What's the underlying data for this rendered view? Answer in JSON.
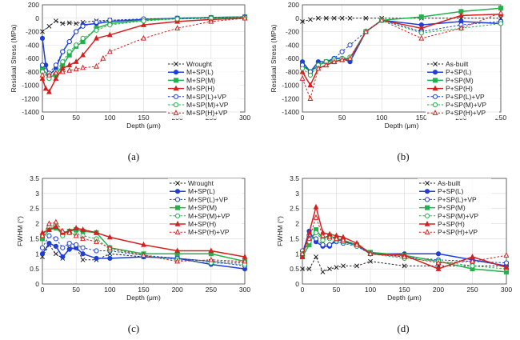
{
  "panel_letters": [
    "(a)",
    "(b)",
    "(c)",
    "(d)"
  ],
  "chart_data": [
    {
      "id": "a",
      "type": "line",
      "xlabel": "Depth (μm)",
      "ylabel": "Residual Stress (MPa)",
      "xlim": [
        0,
        300
      ],
      "ylim": [
        -1400,
        200
      ],
      "xticks": [
        0,
        50,
        100,
        150,
        200,
        250,
        300
      ],
      "yticks": [
        -1400,
        -1200,
        -1000,
        -800,
        -600,
        -400,
        -200,
        0,
        200
      ],
      "grid": true,
      "legend_position": "bottom-right",
      "series": [
        {
          "name": "Wrought",
          "color": "#222222",
          "dashed": true,
          "marker": "x",
          "x": [
            0,
            10,
            20,
            30,
            40,
            50,
            60,
            80,
            100,
            150,
            200,
            250,
            300
          ],
          "y": [
            -200,
            -120,
            -40,
            -80,
            -70,
            -80,
            -60,
            -40,
            -30,
            -20,
            -10,
            0,
            10
          ]
        },
        {
          "name": "M+SP(L)",
          "color": "#1f3fd6",
          "dashed": false,
          "marker": "circle",
          "x": [
            0,
            5,
            10,
            20,
            30,
            40,
            50,
            60,
            80,
            100,
            150,
            200,
            250,
            300
          ],
          "y": [
            -300,
            -700,
            -850,
            -750,
            -500,
            -350,
            -200,
            -100,
            -80,
            -50,
            -20,
            0,
            10,
            20
          ]
        },
        {
          "name": "M+SP(M)",
          "color": "#22b14c",
          "dashed": false,
          "marker": "square",
          "x": [
            0,
            10,
            20,
            30,
            40,
            50,
            60,
            80,
            100,
            150,
            200,
            250,
            300
          ],
          "y": [
            -750,
            -880,
            -850,
            -700,
            -550,
            -420,
            -350,
            -150,
            -80,
            -30,
            0,
            10,
            20
          ]
        },
        {
          "name": "M+SP(H)",
          "color": "#d42020",
          "dashed": false,
          "marker": "triangle",
          "x": [
            0,
            5,
            10,
            20,
            30,
            40,
            50,
            60,
            80,
            100,
            150,
            200,
            250,
            300
          ],
          "y": [
            -900,
            -1050,
            -1100,
            -900,
            -750,
            -700,
            -650,
            -550,
            -300,
            -250,
            -100,
            -50,
            -20,
            0
          ]
        },
        {
          "name": "M+SP(L)+VP",
          "color": "#1f3fd6",
          "dashed": true,
          "marker": "circle-open",
          "x": [
            0,
            10,
            20,
            30,
            40,
            50,
            60,
            80,
            100,
            150,
            200,
            250,
            300
          ],
          "y": [
            -700,
            -820,
            -700,
            -500,
            -350,
            -200,
            -120,
            -60,
            -30,
            -10,
            0,
            10,
            20
          ]
        },
        {
          "name": "M+SP(M)+VP",
          "color": "#22b14c",
          "dashed": true,
          "marker": "circle-open",
          "x": [
            0,
            10,
            20,
            30,
            40,
            50,
            60,
            80,
            100,
            150,
            200,
            250,
            300
          ],
          "y": [
            -800,
            -900,
            -800,
            -650,
            -500,
            -400,
            -300,
            -180,
            -100,
            -40,
            -10,
            0,
            10
          ]
        },
        {
          "name": "M+SP(H)+VP",
          "color": "#d42020",
          "dashed": true,
          "marker": "triangle-open",
          "x": [
            0,
            10,
            20,
            30,
            40,
            50,
            60,
            80,
            90,
            100,
            150,
            200,
            250,
            300
          ],
          "y": [
            -850,
            -850,
            -820,
            -800,
            -780,
            -760,
            -740,
            -720,
            -600,
            -500,
            -300,
            -150,
            -50,
            0
          ]
        }
      ]
    },
    {
      "id": "b",
      "type": "line",
      "xlabel": "Depth (μm)",
      "ylabel": "Residual Stress (MPa)",
      "xlim": [
        0,
        250
      ],
      "ylim": [
        -1400,
        200
      ],
      "xticks": [
        0,
        50,
        100,
        150,
        200,
        250
      ],
      "yticks": [
        -1400,
        -1200,
        -1000,
        -800,
        -600,
        -400,
        -200,
        0,
        200
      ],
      "grid": true,
      "legend_position": "bottom-right",
      "series": [
        {
          "name": "As-built",
          "color": "#222222",
          "dashed": true,
          "marker": "x",
          "x": [
            0,
            10,
            20,
            30,
            40,
            50,
            60,
            80,
            100,
            150,
            200,
            250
          ],
          "y": [
            -50,
            -20,
            0,
            0,
            0,
            0,
            0,
            0,
            0,
            0,
            0,
            0
          ]
        },
        {
          "name": "P+SP(L)",
          "color": "#1f3fd6",
          "dashed": false,
          "marker": "circle",
          "x": [
            0,
            10,
            20,
            30,
            40,
            50,
            60,
            80,
            100,
            150,
            200,
            250
          ],
          "y": [
            -650,
            -800,
            -650,
            -650,
            -600,
            -600,
            -650,
            -200,
            -30,
            -100,
            -50,
            -80
          ]
        },
        {
          "name": "P+SP(M)",
          "color": "#22b14c",
          "dashed": false,
          "marker": "square",
          "x": [
            0,
            10,
            20,
            30,
            40,
            50,
            60,
            80,
            100,
            150,
            200,
            250
          ],
          "y": [
            -700,
            -800,
            -700,
            -650,
            -650,
            -620,
            -600,
            -200,
            -30,
            20,
            100,
            150
          ]
        },
        {
          "name": "P+SP(H)",
          "color": "#d42020",
          "dashed": false,
          "marker": "triangle",
          "x": [
            0,
            10,
            20,
            30,
            40,
            50,
            60,
            80,
            100,
            150,
            200,
            250
          ],
          "y": [
            -800,
            -1000,
            -750,
            -700,
            -650,
            -620,
            -600,
            -200,
            -30,
            -150,
            40,
            60
          ]
        },
        {
          "name": "P+SP(L)+VP",
          "color": "#1f3fd6",
          "dashed": true,
          "marker": "circle-open",
          "x": [
            0,
            10,
            20,
            30,
            40,
            50,
            60,
            80,
            100,
            150,
            200,
            250
          ],
          "y": [
            -700,
            -800,
            -700,
            -650,
            -600,
            -500,
            -400,
            -200,
            -30,
            -200,
            -100,
            -50
          ]
        },
        {
          "name": "P+SP(M)+VP",
          "color": "#22b14c",
          "dashed": true,
          "marker": "circle-open",
          "x": [
            0,
            10,
            20,
            30,
            40,
            50,
            60,
            80,
            100,
            150,
            200,
            250
          ],
          "y": [
            -750,
            -850,
            -700,
            -650,
            -620,
            -600,
            -580,
            -200,
            -30,
            -220,
            -150,
            -80
          ]
        },
        {
          "name": "P+SP(H)+VP",
          "color": "#d42020",
          "dashed": true,
          "marker": "triangle-open",
          "x": [
            0,
            10,
            20,
            30,
            40,
            50,
            60,
            80,
            100,
            150,
            200,
            250
          ],
          "y": [
            -900,
            -1200,
            -750,
            -700,
            -650,
            -620,
            -600,
            -200,
            -30,
            -300,
            -150,
            80
          ]
        }
      ]
    },
    {
      "id": "c",
      "type": "line",
      "xlabel": "Depth (μm)",
      "ylabel": "FWHM (°)",
      "xlim": [
        0,
        300
      ],
      "ylim": [
        0,
        3.5
      ],
      "xticks": [
        0,
        50,
        100,
        150,
        200,
        250,
        300
      ],
      "yticks": [
        0,
        0.5,
        1,
        1.5,
        2,
        2.5,
        3,
        3.5
      ],
      "grid": true,
      "legend_position": "top-right",
      "series": [
        {
          "name": "Wrought",
          "color": "#222222",
          "dashed": true,
          "marker": "x",
          "x": [
            0,
            10,
            20,
            30,
            40,
            50,
            60,
            80,
            100,
            150,
            200,
            250,
            300
          ],
          "y": [
            0.9,
            1.3,
            1.0,
            0.85,
            1.2,
            1.2,
            0.8,
            0.8,
            1.0,
            0.9,
            0.85,
            0.75,
            0.7
          ]
        },
        {
          "name": "M+SP(L)",
          "color": "#1f3fd6",
          "dashed": false,
          "marker": "circle",
          "x": [
            0,
            10,
            20,
            30,
            40,
            50,
            60,
            80,
            100,
            150,
            200,
            250,
            300
          ],
          "y": [
            1.0,
            1.35,
            1.25,
            0.9,
            1.15,
            1.2,
            1.0,
            0.85,
            0.85,
            0.9,
            0.85,
            0.65,
            0.5
          ]
        },
        {
          "name": "M+SP(L)+VP",
          "color": "#1f3fd6",
          "dashed": true,
          "marker": "circle-open",
          "x": [
            0,
            10,
            20,
            30,
            40,
            50,
            60,
            80,
            100,
            150,
            200,
            250,
            300
          ],
          "y": [
            1.2,
            1.6,
            1.5,
            1.2,
            1.35,
            1.3,
            1.2,
            1.1,
            1.1,
            0.95,
            0.85,
            0.75,
            0.6
          ]
        },
        {
          "name": "M+SP(M)",
          "color": "#22b14c",
          "dashed": false,
          "marker": "square",
          "x": [
            0,
            10,
            20,
            30,
            40,
            50,
            60,
            80,
            100,
            150,
            200,
            250,
            300
          ],
          "y": [
            1.5,
            1.8,
            1.85,
            1.65,
            1.75,
            1.8,
            1.75,
            1.7,
            1.2,
            1.0,
            1.0,
            1.0,
            0.75
          ]
        },
        {
          "name": "M+SP(M)+VP",
          "color": "#22b14c",
          "dashed": true,
          "marker": "circle-open",
          "x": [
            0,
            10,
            20,
            30,
            40,
            50,
            60,
            80,
            100,
            150,
            200,
            250,
            300
          ],
          "y": [
            1.6,
            1.9,
            1.95,
            1.6,
            1.7,
            1.65,
            1.6,
            1.5,
            1.15,
            0.95,
            0.8,
            0.7,
            0.65
          ]
        },
        {
          "name": "M+SP(H)",
          "color": "#d42020",
          "dashed": false,
          "marker": "triangle",
          "x": [
            0,
            10,
            20,
            30,
            40,
            50,
            60,
            80,
            100,
            150,
            200,
            250,
            300
          ],
          "y": [
            1.7,
            1.8,
            1.9,
            1.7,
            1.75,
            1.85,
            1.8,
            1.7,
            1.55,
            1.3,
            1.1,
            1.1,
            0.9
          ]
        },
        {
          "name": "M+SP(H)+VP",
          "color": "#d42020",
          "dashed": true,
          "marker": "triangle-open",
          "x": [
            0,
            10,
            20,
            30,
            40,
            50,
            60,
            80,
            100,
            150,
            200,
            250,
            300
          ],
          "y": [
            1.6,
            2.0,
            2.05,
            1.75,
            1.7,
            1.6,
            1.5,
            1.4,
            1.2,
            0.95,
            0.75,
            0.8,
            0.75
          ]
        }
      ]
    },
    {
      "id": "d",
      "type": "line",
      "xlabel": "Depth (μm)",
      "ylabel": "FWHM (°)",
      "xlim": [
        0,
        300
      ],
      "ylim": [
        0,
        3.5
      ],
      "xticks": [
        0,
        50,
        100,
        150,
        200,
        250,
        300
      ],
      "yticks": [
        0,
        0.5,
        1,
        1.5,
        2,
        2.5,
        3,
        3.5
      ],
      "grid": true,
      "legend_position": "top-right",
      "series": [
        {
          "name": "As-built",
          "color": "#222222",
          "dashed": true,
          "marker": "x",
          "x": [
            0,
            10,
            20,
            30,
            40,
            50,
            60,
            80,
            100,
            150,
            200,
            250,
            300
          ],
          "y": [
            0.5,
            0.5,
            0.9,
            0.4,
            0.5,
            0.55,
            0.6,
            0.6,
            0.75,
            0.6,
            0.6,
            0.6,
            0.6
          ]
        },
        {
          "name": "P+SP(L)",
          "color": "#1f3fd6",
          "dashed": false,
          "marker": "circle",
          "x": [
            0,
            10,
            20,
            30,
            40,
            50,
            60,
            80,
            100,
            150,
            200,
            250,
            300
          ],
          "y": [
            1.0,
            1.75,
            1.4,
            1.25,
            1.25,
            1.5,
            1.4,
            1.3,
            1.0,
            1.0,
            1.0,
            0.8,
            0.6
          ]
        },
        {
          "name": "P+SP(L)+VP",
          "color": "#1f3fd6",
          "dashed": true,
          "marker": "circle-open",
          "x": [
            0,
            10,
            20,
            30,
            40,
            50,
            60,
            80,
            100,
            150,
            200,
            250,
            300
          ],
          "y": [
            1.1,
            1.6,
            1.5,
            1.3,
            1.3,
            1.4,
            1.35,
            1.25,
            1.0,
            0.9,
            0.8,
            0.75,
            0.7
          ]
        },
        {
          "name": "P+SP(M)",
          "color": "#22b14c",
          "dashed": false,
          "marker": "square",
          "x": [
            0,
            10,
            20,
            30,
            40,
            50,
            60,
            80,
            100,
            150,
            200,
            250,
            300
          ],
          "y": [
            0.9,
            1.3,
            1.8,
            1.5,
            1.6,
            1.5,
            1.45,
            1.3,
            1.05,
            0.95,
            0.75,
            0.5,
            0.4
          ]
        },
        {
          "name": "P+SP(M)+VP",
          "color": "#22b14c",
          "dashed": true,
          "marker": "circle-open",
          "x": [
            0,
            10,
            20,
            30,
            40,
            50,
            60,
            80,
            100,
            150,
            200,
            250,
            300
          ],
          "y": [
            1.0,
            1.4,
            1.7,
            1.45,
            1.5,
            1.45,
            1.4,
            1.25,
            1.0,
            0.85,
            0.75,
            0.6,
            0.5
          ]
        },
        {
          "name": "P+SP(H)",
          "color": "#d42020",
          "dashed": false,
          "marker": "triangle",
          "x": [
            0,
            10,
            20,
            30,
            40,
            50,
            60,
            80,
            100,
            150,
            200,
            250,
            300
          ],
          "y": [
            0.9,
            1.7,
            2.55,
            1.7,
            1.65,
            1.6,
            1.55,
            1.35,
            1.0,
            0.95,
            0.5,
            0.9,
            0.55
          ]
        },
        {
          "name": "P+SP(H)+VP",
          "color": "#d42020",
          "dashed": true,
          "marker": "triangle-open",
          "x": [
            0,
            10,
            20,
            30,
            40,
            50,
            60,
            80,
            100,
            150,
            200,
            250,
            300
          ],
          "y": [
            1.0,
            1.5,
            2.2,
            1.6,
            1.55,
            1.5,
            1.45,
            1.3,
            1.0,
            0.9,
            0.7,
            0.75,
            0.95
          ]
        }
      ]
    }
  ]
}
